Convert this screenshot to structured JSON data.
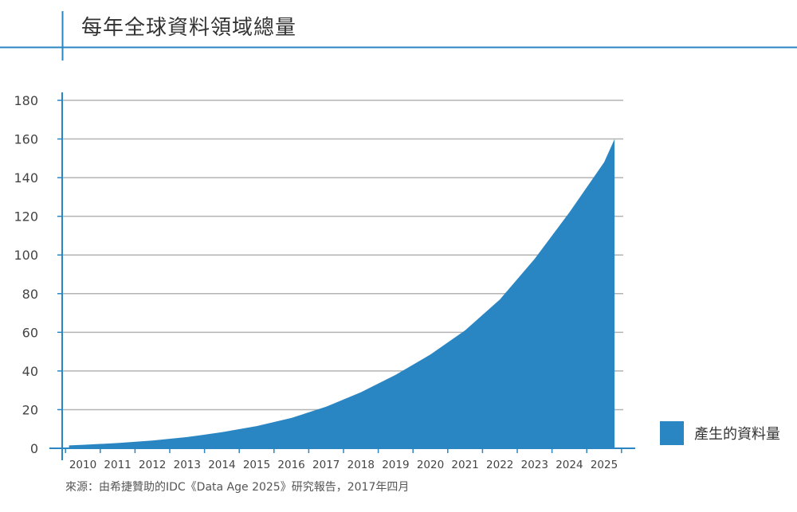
{
  "header": {
    "title": "每年全球資料領域總量"
  },
  "footer": {
    "source": "來源：由希捷贊助的IDC《Data Age 2025》研究報告，2017年四月"
  },
  "colors": {
    "accent": "#2a86c2",
    "area": "#2a86c2",
    "grid": "#b3b3b3",
    "axis": "#2a86c2"
  },
  "chart_data": {
    "type": "area",
    "title": "每年全球資料領域總量",
    "xlabel": "",
    "ylabel": "",
    "categories": [
      "2010",
      "2011",
      "2012",
      "2013",
      "2014",
      "2015",
      "2016",
      "2017",
      "2018",
      "2019",
      "2020",
      "2021",
      "2022",
      "2023",
      "2024",
      "2025"
    ],
    "x": [
      2010,
      2025
    ],
    "y_ticks": [
      0,
      20,
      40,
      60,
      80,
      100,
      120,
      140,
      160,
      180
    ],
    "ylim": [
      0,
      180
    ],
    "grid": true,
    "legend_position": "bottom-right",
    "series": [
      {
        "name": "產生的資料量",
        "points": [
          [
            2009.6,
            1.5
          ],
          [
            2010,
            1.8
          ],
          [
            2011,
            2.7
          ],
          [
            2012,
            4.0
          ],
          [
            2013,
            5.8
          ],
          [
            2014,
            8.3
          ],
          [
            2015,
            11.5
          ],
          [
            2016,
            15.7
          ],
          [
            2017,
            21.5
          ],
          [
            2018,
            29
          ],
          [
            2019,
            38
          ],
          [
            2020,
            48.5
          ],
          [
            2021,
            61
          ],
          [
            2022,
            77
          ],
          [
            2023,
            98
          ],
          [
            2024,
            122
          ],
          [
            2025,
            148
          ],
          [
            2025.3,
            160
          ]
        ]
      }
    ]
  }
}
